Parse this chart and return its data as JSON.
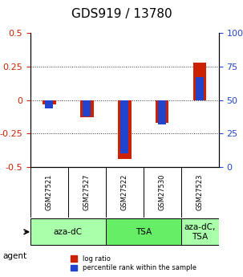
{
  "title": "GDS919 / 13780",
  "samples": [
    "GSM27521",
    "GSM27527",
    "GSM27522",
    "GSM27530",
    "GSM27523"
  ],
  "log_ratio": [
    -0.03,
    -0.13,
    -0.44,
    -0.17,
    0.28
  ],
  "percentile_rank": [
    44,
    38,
    10,
    32,
    67
  ],
  "agent_groups": [
    {
      "label": "aza-dC",
      "span": [
        0,
        2
      ],
      "color": "#aaffaa"
    },
    {
      "label": "TSA",
      "span": [
        2,
        4
      ],
      "color": "#66ee66"
    },
    {
      "label": "aza-dC,\nTSA",
      "span": [
        4,
        5
      ],
      "color": "#aaffaa"
    }
  ],
  "ylim_left": [
    -0.5,
    0.5
  ],
  "ylim_right": [
    0,
    100
  ],
  "yticks_left": [
    -0.5,
    -0.25,
    0,
    0.25,
    0.5
  ],
  "yticks_right": [
    0,
    25,
    50,
    75,
    100
  ],
  "bar_width": 0.35,
  "red_color": "#cc2200",
  "blue_color": "#2244cc",
  "grid_color": "#333333",
  "bg_color": "#ffffff",
  "plot_bg": "#ffffff",
  "left_tick_color": "#cc2200",
  "right_tick_color": "#2244cc",
  "title_fontsize": 11,
  "tick_fontsize": 8,
  "label_fontsize": 7.5,
  "agent_fontsize": 7.5
}
